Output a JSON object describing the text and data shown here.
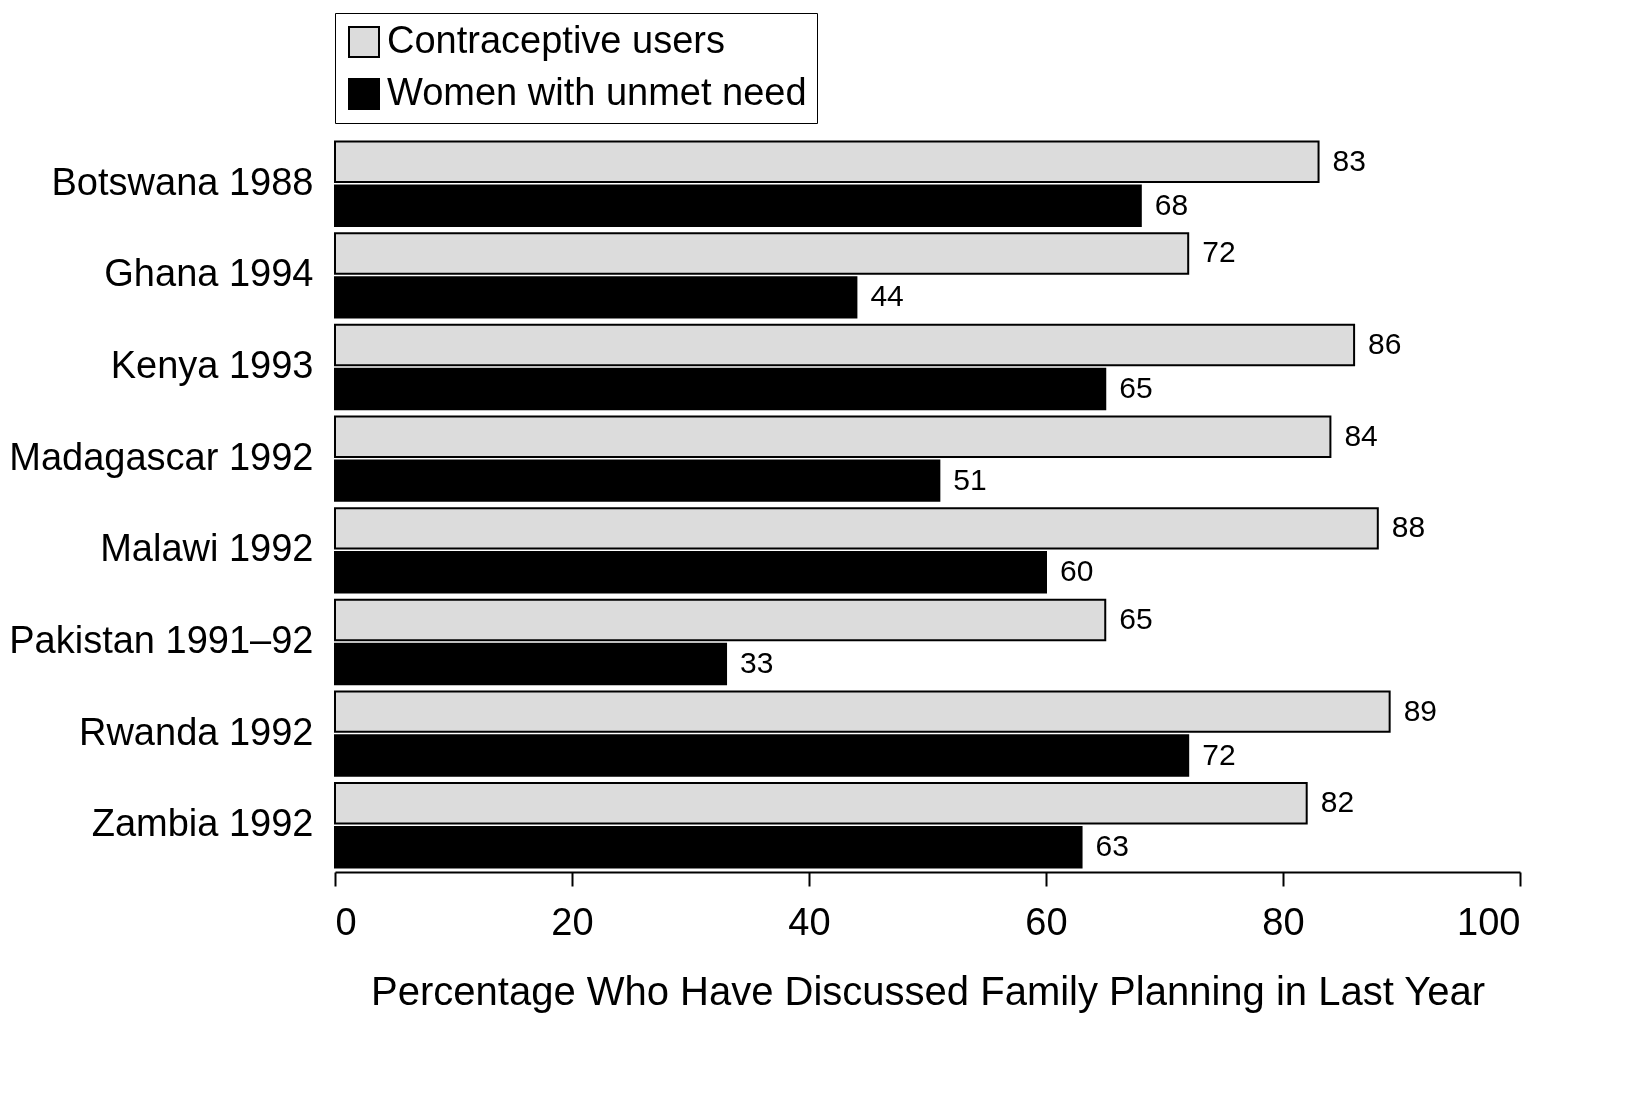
{
  "chart_data": {
    "type": "bar",
    "orientation": "horizontal",
    "xlabel": "Percentage Who Have Discussed Family Planning in Last Year",
    "categories": [
      "Botswana 1988",
      "Ghana 1994",
      "Kenya 1993",
      "Madagascar 1992",
      "Malawi 1992",
      "Pakistan 1991–92",
      "Rwanda 1992",
      "Zambia 1992"
    ],
    "series": [
      {
        "name": "Contraceptive users",
        "color": "#dcdcdc",
        "values": [
          83,
          72,
          86,
          84,
          88,
          65,
          89,
          82
        ]
      },
      {
        "name": "Women with unmet need",
        "color": "#000000",
        "values": [
          68,
          44,
          65,
          51,
          60,
          33,
          72,
          63
        ]
      }
    ],
    "xlim": [
      0,
      100
    ],
    "xticks": [
      0,
      20,
      40,
      60,
      80,
      100
    ],
    "grid": false,
    "legend": "top",
    "data_labels": true
  }
}
